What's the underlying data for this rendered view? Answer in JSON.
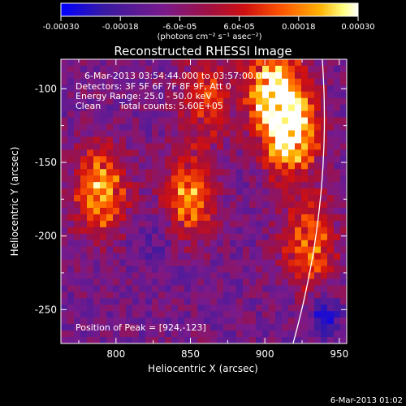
{
  "chart_data": {
    "type": "heatmap",
    "title": "Reconstructed RHESSI Image",
    "xlabel": "Heliocentric X (arcsec)",
    "ylabel": "Heliocentric Y (arcsec)",
    "xlim": [
      763,
      955
    ],
    "ylim": [
      -273,
      -80
    ],
    "xticks": [
      "800",
      "850",
      "900",
      "950"
    ],
    "yticks": [
      "-100",
      "-150",
      "-200",
      "-250"
    ],
    "colorbar": {
      "range": [
        -0.0003,
        0.0003
      ],
      "tick_labels": [
        "-0.00030",
        "-0.00018",
        "-6.0e-05",
        "6.0e-05",
        "0.00018",
        "0.00030"
      ],
      "unit_label": "(photons cm⁻² s⁻¹ asec⁻²)",
      "colors": [
        "#0000ff",
        "#3a1aa0",
        "#7a1a8a",
        "#c01010",
        "#ff5a00",
        "#ffb000",
        "#ffff80",
        "#ffffff"
      ]
    },
    "annotations": {
      "time_range": "6-Mar-2013 03:54:44.000 to 03:57:00.000",
      "detectors": "Detectors: 3F 5F 6F 7F 8F 9F, Att 0",
      "energy": "Energy Range: 25.0 - 50.0 keV",
      "clean": "Clean",
      "total_counts": "Total counts: 5.60E+05",
      "peak": "Position of Peak = [924,-123]"
    },
    "bright_sources": [
      {
        "x": 790,
        "y": -170,
        "strength": 0.8
      },
      {
        "x": 848,
        "y": -175,
        "strength": 0.7
      },
      {
        "x": 918,
        "y": -130,
        "strength": 1.0
      },
      {
        "x": 905,
        "y": -100,
        "strength": 0.9
      },
      {
        "x": 930,
        "y": -205,
        "strength": 0.65
      },
      {
        "x": 860,
        "y": -105,
        "strength": 0.5
      }
    ],
    "peak_position": [
      924,
      -123
    ],
    "limb_arc": true
  },
  "footer": {
    "timestamp": "6-Mar-2013 01:02"
  }
}
